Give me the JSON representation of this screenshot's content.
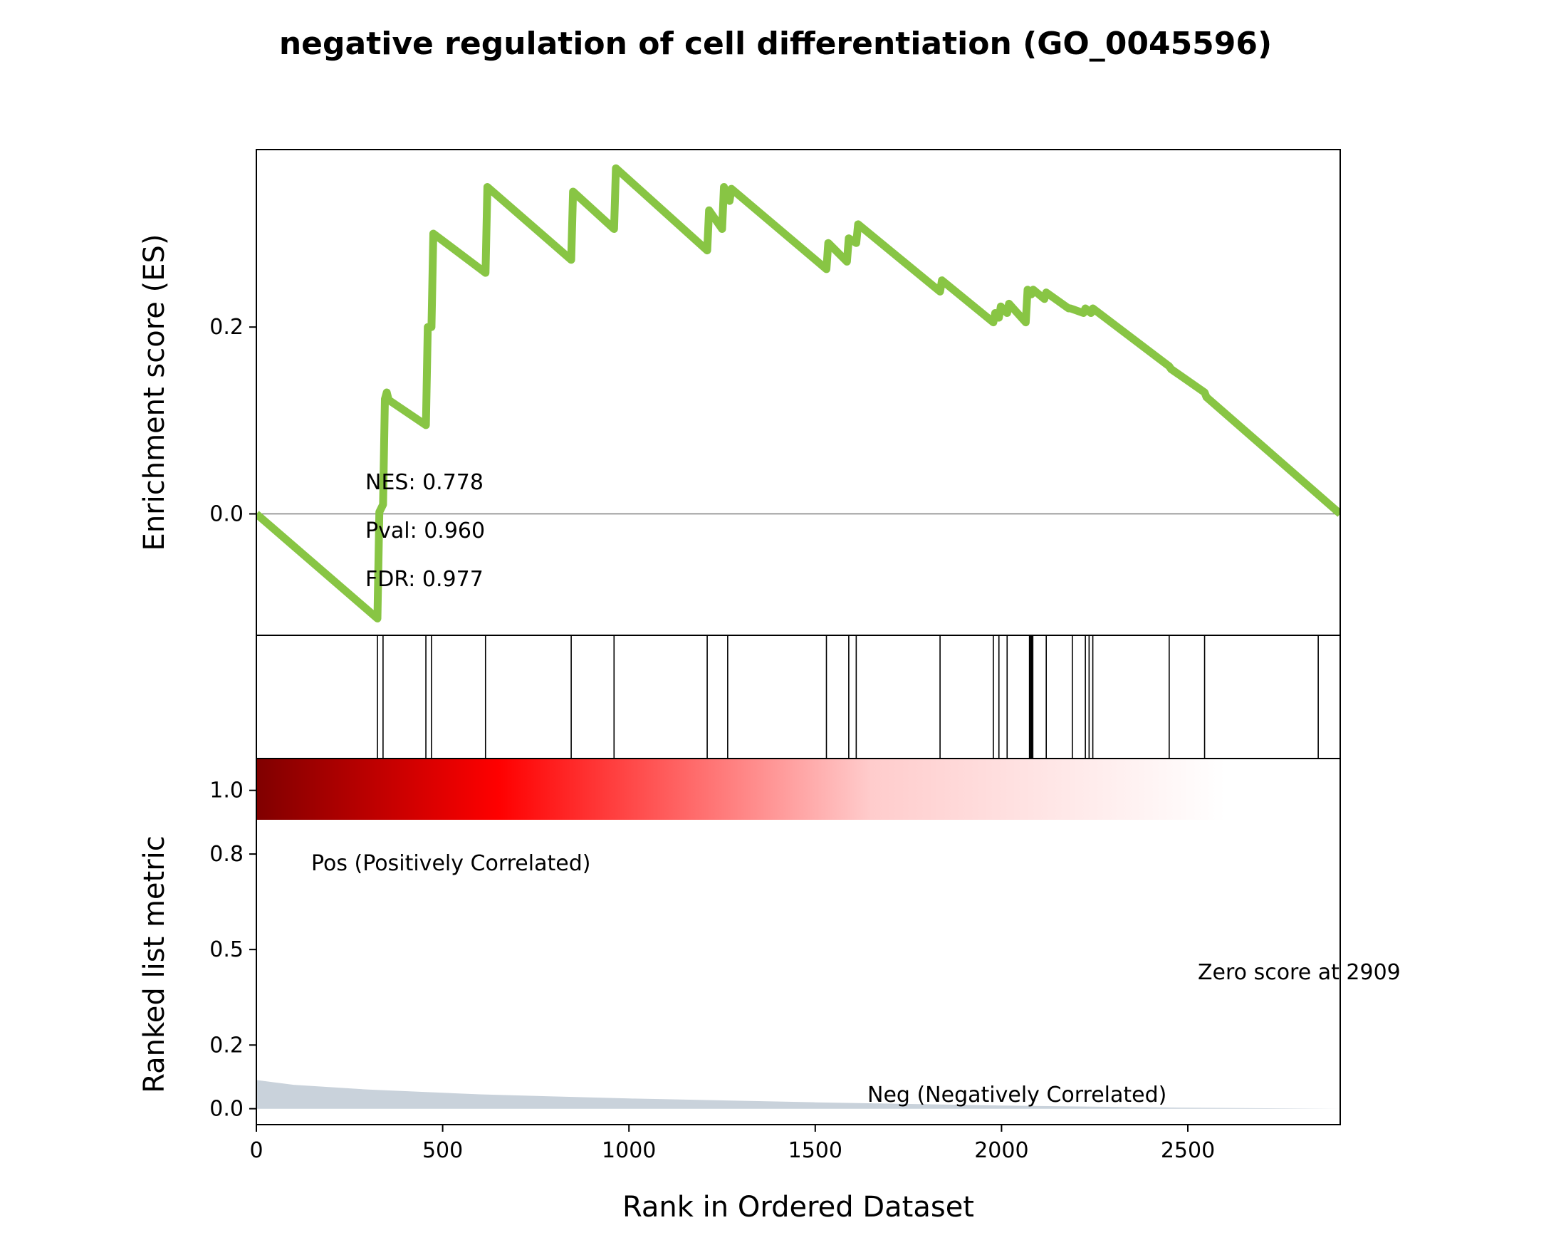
{
  "chart_data": {
    "type": "line",
    "title": "negative regulation of cell differentiation (GO_0045596)",
    "xlabel": "Rank in Ordered Dataset",
    "xlim": [
      0,
      2909
    ],
    "x_ticks": [
      "0",
      "500",
      "1000",
      "1500",
      "2000",
      "2500"
    ],
    "panels": {
      "es": {
        "ylabel": "Enrichment score (ES)",
        "ylim": [
          -0.13,
          0.39
        ],
        "y_ticks": [
          "0.0",
          "0.2"
        ],
        "line_color": "#88c544",
        "x": [
          0,
          325,
          330,
          340,
          345,
          350,
          355,
          455,
          460,
          470,
          475,
          615,
          620,
          845,
          850,
          960,
          965,
          1210,
          1215,
          1250,
          1255,
          1270,
          1275,
          1530,
          1535,
          1585,
          1590,
          1610,
          1615,
          1835,
          1840,
          1978,
          1983,
          1993,
          1998,
          2015,
          2020,
          2065,
          2070,
          2080,
          2085,
          2115,
          2120,
          2180,
          2185,
          2220,
          2225,
          2240,
          2245,
          2450,
          2455,
          2545,
          2550,
          2909
        ],
        "y": [
          0.0,
          -0.112,
          0.002,
          0.01,
          0.123,
          0.13,
          0.122,
          0.095,
          0.2,
          0.2,
          0.3,
          0.258,
          0.35,
          0.272,
          0.345,
          0.305,
          0.37,
          0.282,
          0.325,
          0.305,
          0.35,
          0.335,
          0.348,
          0.262,
          0.29,
          0.27,
          0.295,
          0.29,
          0.31,
          0.238,
          0.25,
          0.205,
          0.215,
          0.21,
          0.222,
          0.215,
          0.225,
          0.205,
          0.24,
          0.235,
          0.24,
          0.23,
          0.237,
          0.22,
          0.22,
          0.215,
          0.22,
          0.215,
          0.22,
          0.158,
          0.155,
          0.13,
          0.125,
          0.0
        ],
        "annotations": {
          "nes": "NES: 0.778",
          "pval": "Pval: 0.960",
          "fdr": "FDR: 0.977"
        }
      },
      "hits": {
        "positions": [
          325,
          340,
          455,
          470,
          615,
          845,
          960,
          1210,
          1265,
          1530,
          1590,
          1610,
          1835,
          1978,
          1993,
          2015,
          2075,
          2078,
          2081,
          2084,
          2120,
          2190,
          2225,
          2235,
          2245,
          2450,
          2545,
          2850
        ]
      },
      "heatmap": {
        "colormap": "seismic (positive half)",
        "stops": [
          {
            "rank": 0,
            "color": "#800000"
          },
          {
            "rank": 650,
            "color": "#ff0000"
          },
          {
            "rank": 1650,
            "color": "#ffcccc"
          },
          {
            "rank": 2600,
            "color": "#ffffff"
          }
        ]
      },
      "ranked": {
        "ylabel": "Ranked list metric",
        "ylim": [
          -0.05,
          1.1
        ],
        "y_ticks": [
          "0.0",
          "0.2",
          "0.5",
          "0.8",
          "1.0"
        ],
        "fill_color": "#c9d2db",
        "x": [
          0,
          100,
          300,
          600,
          1000,
          1500,
          2000,
          2500,
          2909
        ],
        "y": [
          0.09,
          0.075,
          0.06,
          0.045,
          0.032,
          0.02,
          0.01,
          0.003,
          0.0
        ],
        "pos_label": "Pos (Positively Correlated)",
        "neg_label": "Neg (Negatively Correlated)",
        "pos_color": "#ff0000",
        "neg_color": "#0000ff",
        "zero_score": "Zero score at 2909"
      }
    }
  }
}
